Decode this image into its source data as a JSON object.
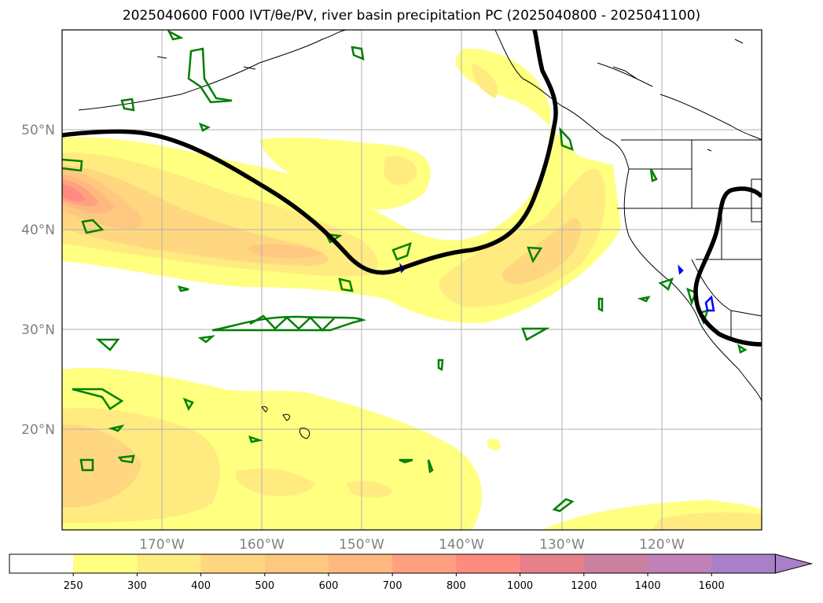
{
  "title": "2025040600 F000 IVT/θe/PV, river basin precipitation PC (2025040800 - 2025041100)",
  "map": {
    "lon_labels": [
      "170°W",
      "160°W",
      "150°W",
      "140°W",
      "130°W",
      "120°W"
    ],
    "lon_values": [
      -170,
      -160,
      -150,
      -140,
      -130,
      -120
    ],
    "lat_labels": [
      "50°N",
      "40°N",
      "30°N",
      "20°N"
    ],
    "lat_values": [
      50,
      40,
      30,
      20
    ],
    "extent": {
      "lon_min": -180,
      "lon_max": -110,
      "lat_min": 10,
      "lat_max": 60
    },
    "fields": [
      "IVT",
      "θe",
      "PV",
      "river basin precipitation PC"
    ],
    "contour_colors": {
      "theta_e_line": "#000000",
      "pv_contour": "#008000",
      "precip_contour": "#0000ff"
    }
  },
  "colorbar": {
    "ticks": [
      "250",
      "300",
      "400",
      "500",
      "600",
      "700",
      "800",
      "1000",
      "1200",
      "1400",
      "1600"
    ],
    "colors": [
      "#ffffff",
      "#ffff80",
      "#ffeb80",
      "#ffd780",
      "#ffc880",
      "#ffb880",
      "#ffa080",
      "#ff8a80",
      "#e6808a",
      "#cc80a0",
      "#c080b8",
      "#a880c8"
    ],
    "extend": "max"
  }
}
